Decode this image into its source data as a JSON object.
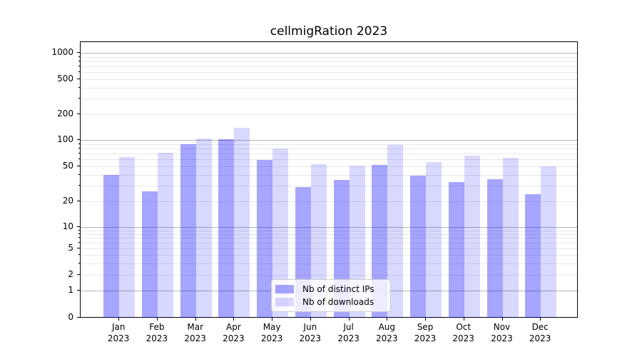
{
  "chart_data": {
    "type": "bar",
    "title": "cellmigRation 2023",
    "categories": [
      "Jan 2023",
      "Feb 2023",
      "Mar 2023",
      "Apr 2023",
      "May 2023",
      "Jun 2023",
      "Jul 2023",
      "Aug 2023",
      "Sep 2023",
      "Oct 2023",
      "Nov 2023",
      "Dec 2023"
    ],
    "series": [
      {
        "name": "Nb of distinct IPs",
        "color": "#0000FF",
        "alpha": 0.35,
        "rendered_color": "#A6A6FF",
        "values": [
          40,
          26,
          89,
          102,
          59,
          29,
          35,
          52,
          39,
          33,
          36,
          24
        ]
      },
      {
        "name": "Nb of downloads",
        "color": "#0000FF",
        "alpha": 0.15,
        "rendered_color": "#D9D9FF",
        "values": [
          64,
          71,
          105,
          140,
          80,
          53,
          51,
          88,
          56,
          66,
          63,
          50
        ]
      }
    ],
    "yscale": "symlog",
    "yticks": [
      0,
      1,
      2,
      5,
      10,
      20,
      50,
      100,
      200,
      500,
      1000
    ],
    "ylim": [
      0,
      1350
    ],
    "grid": true,
    "legend_position": "lower center"
  },
  "palette": {
    "major_grid": "#B4B4B4",
    "minor_grid": "#E8E8E8",
    "axis": "#000000",
    "text": "#000000",
    "legend_border": "#CCCCCC",
    "legend_background": "rgba(255,255,255,0.8)"
  }
}
